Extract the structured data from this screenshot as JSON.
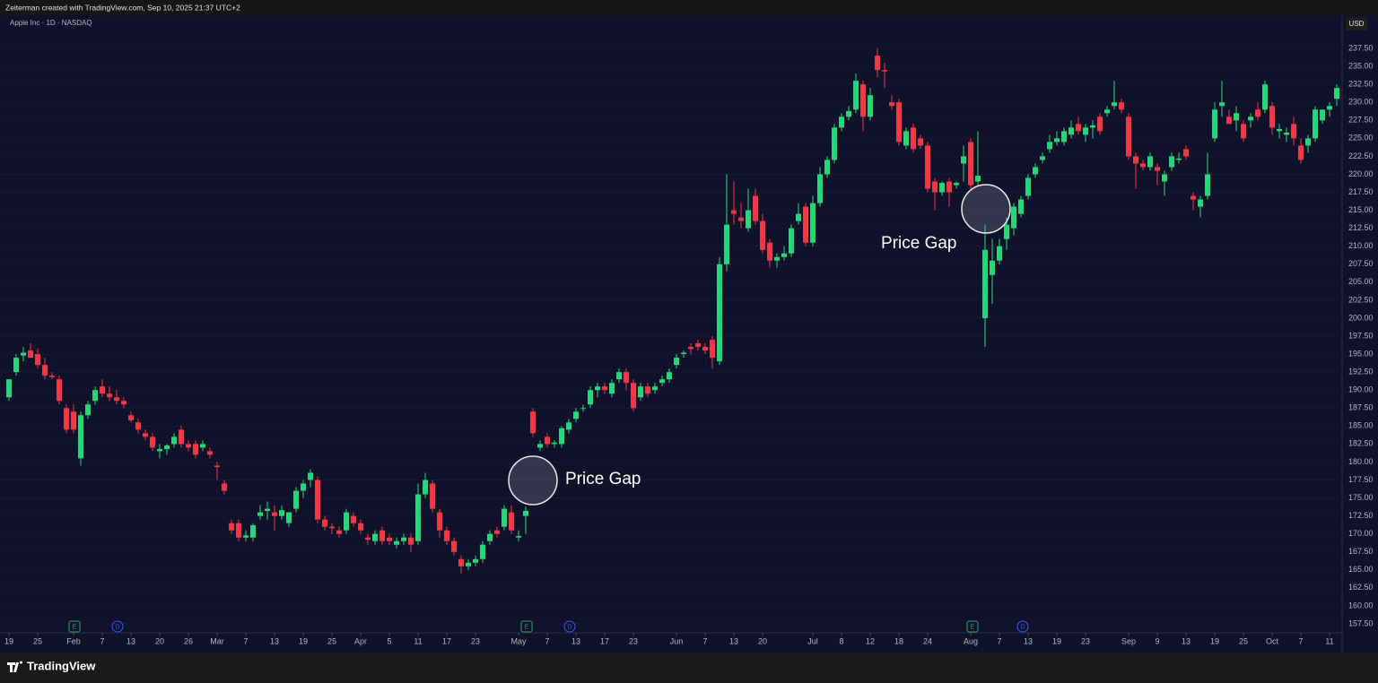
{
  "header": {
    "credit": "Zeiterman created with TradingView.com, Sep 10, 2025 21:37 UTC+2",
    "symbol": "Apple Inc · 1D · NASDAQ",
    "currency": "USD"
  },
  "footer": {
    "brand": "TradingView"
  },
  "chart_data": {
    "type": "candlestick",
    "up_color": "#22d97a",
    "down_color": "#f23645",
    "background": "#10112b",
    "ylim": [
      156.25,
      239.5
    ],
    "yticks": [
      {
        "value": 157.5,
        "label": "157.50"
      },
      {
        "value": 160,
        "label": "160.00"
      },
      {
        "value": 162.5,
        "label": "162.50"
      },
      {
        "value": 165,
        "label": "165.00"
      },
      {
        "value": 167.5,
        "label": "167.50"
      },
      {
        "value": 170,
        "label": "170.00"
      },
      {
        "value": 172.5,
        "label": "172.50"
      },
      {
        "value": 175,
        "label": "175.00"
      },
      {
        "value": 177.5,
        "label": "177.50"
      },
      {
        "value": 180,
        "label": "180.00"
      },
      {
        "value": 182.5,
        "label": "182.50"
      },
      {
        "value": 185,
        "label": "185.00"
      },
      {
        "value": 187.5,
        "label": "187.50"
      },
      {
        "value": 190,
        "label": "190.00"
      },
      {
        "value": 192.5,
        "label": "192.50"
      },
      {
        "value": 195,
        "label": "195.00"
      },
      {
        "value": 197.5,
        "label": "197.50"
      },
      {
        "value": 200,
        "label": "200.00"
      },
      {
        "value": 202.5,
        "label": "202.50"
      },
      {
        "value": 205,
        "label": "205.00"
      },
      {
        "value": 207.5,
        "label": "207.50"
      },
      {
        "value": 210,
        "label": "210.00"
      },
      {
        "value": 212.5,
        "label": "212.50"
      },
      {
        "value": 215,
        "label": "215.00"
      },
      {
        "value": 217.5,
        "label": "217.50"
      },
      {
        "value": 220,
        "label": "220.00"
      },
      {
        "value": 222.5,
        "label": "222.50"
      },
      {
        "value": 225,
        "label": "225.00"
      },
      {
        "value": 227.5,
        "label": "227.50"
      },
      {
        "value": 230,
        "label": "230.00"
      },
      {
        "value": 232.5,
        "label": "232.50"
      },
      {
        "value": 235,
        "label": "235.00"
      },
      {
        "value": 237.5,
        "label": "237.50"
      }
    ],
    "xticks": [
      {
        "value": 0,
        "label": "19"
      },
      {
        "value": 4,
        "label": "25"
      },
      {
        "value": 9,
        "label": "Feb"
      },
      {
        "value": 13,
        "label": "7"
      },
      {
        "value": 17,
        "label": "13"
      },
      {
        "value": 21,
        "label": "20"
      },
      {
        "value": 25,
        "label": "26"
      },
      {
        "value": 29,
        "label": "Mar"
      },
      {
        "value": 33,
        "label": "7"
      },
      {
        "value": 37,
        "label": "13"
      },
      {
        "value": 41,
        "label": "19"
      },
      {
        "value": 45,
        "label": "25"
      },
      {
        "value": 49,
        "label": "Apr"
      },
      {
        "value": 53,
        "label": "5"
      },
      {
        "value": 57,
        "label": "11"
      },
      {
        "value": 61,
        "label": "17"
      },
      {
        "value": 65,
        "label": "23"
      },
      {
        "value": 71,
        "label": "May"
      },
      {
        "value": 75,
        "label": "7"
      },
      {
        "value": 79,
        "label": "13"
      },
      {
        "value": 83,
        "label": "17"
      },
      {
        "value": 87,
        "label": "23"
      },
      {
        "value": 93,
        "label": "Jun"
      },
      {
        "value": 97,
        "label": "7"
      },
      {
        "value": 101,
        "label": "13"
      },
      {
        "value": 105,
        "label": "20"
      },
      {
        "value": 112,
        "label": "Jul"
      },
      {
        "value": 116,
        "label": "8"
      },
      {
        "value": 120,
        "label": "12"
      },
      {
        "value": 124,
        "label": "18"
      },
      {
        "value": 128,
        "label": "24"
      },
      {
        "value": 134,
        "label": "Aug"
      },
      {
        "value": 138,
        "label": "7"
      },
      {
        "value": 142,
        "label": "13"
      },
      {
        "value": 146,
        "label": "19"
      },
      {
        "value": 150,
        "label": "23"
      },
      {
        "value": 156,
        "label": "Sep"
      },
      {
        "value": 160,
        "label": "9"
      },
      {
        "value": 164,
        "label": "13"
      },
      {
        "value": 168,
        "label": "19"
      },
      {
        "value": 172,
        "label": "25"
      },
      {
        "value": 176,
        "label": "Oct"
      },
      {
        "value": 180,
        "label": "7"
      },
      {
        "value": 184,
        "label": "11"
      }
    ],
    "xlim": [
      -0.5,
      185.75
    ],
    "event_markers": [
      "E",
      "D",
      "E",
      "D",
      "E",
      "D"
    ],
    "annotations": [
      {
        "label": "Price Gap"
      },
      {
        "label": "Price Gap"
      }
    ],
    "candles": [
      [
        189,
        191.5,
        188.5,
        191.5
      ],
      [
        192.5,
        195,
        192,
        194.5
      ],
      [
        194.8,
        196,
        194,
        195.2
      ],
      [
        195.5,
        196.5,
        194.5,
        194.5
      ],
      [
        195,
        195.8,
        193,
        193.5
      ],
      [
        193.5,
        194.5,
        191.5,
        192
      ],
      [
        192,
        192.5,
        191.5,
        191.8
      ],
      [
        191.5,
        192,
        188,
        188.5
      ],
      [
        187.5,
        188,
        184,
        184.5
      ],
      [
        187,
        188,
        184,
        184.5
      ],
      [
        180.5,
        187,
        179.5,
        186.5
      ],
      [
        186.5,
        188.5,
        186,
        188
      ],
      [
        188.5,
        190.5,
        188,
        190
      ],
      [
        190.5,
        191.5,
        189,
        189.5
      ],
      [
        189.5,
        190.5,
        188.5,
        189
      ],
      [
        189,
        190,
        188,
        188.5
      ],
      [
        188.5,
        189,
        187.5,
        188
      ],
      [
        186.5,
        187,
        185.5,
        185.8
      ],
      [
        185.5,
        186,
        184,
        184.5
      ],
      [
        184,
        184.5,
        183,
        183.5
      ],
      [
        183.5,
        184,
        181.5,
        182
      ],
      [
        181.5,
        182.5,
        180.5,
        181.8
      ],
      [
        181.8,
        182.5,
        181,
        182.3
      ],
      [
        182.5,
        184,
        182,
        183.5
      ],
      [
        184.5,
        185,
        182,
        182.5
      ],
      [
        182.5,
        183,
        181.5,
        182
      ],
      [
        182.5,
        183,
        180.5,
        181
      ],
      [
        182,
        183,
        181.5,
        182.5
      ],
      [
        181.5,
        182,
        180.5,
        181
      ],
      [
        179.5,
        180,
        177.5,
        179.3
      ],
      [
        177,
        177.5,
        175.5,
        176
      ],
      [
        171.5,
        172,
        170,
        170.5
      ],
      [
        171.5,
        172,
        169,
        169.5
      ],
      [
        169.5,
        170.5,
        169,
        169.8
      ],
      [
        169.5,
        171.5,
        169,
        171.2
      ],
      [
        172.5,
        174,
        172,
        173
      ],
      [
        173.2,
        174.5,
        172,
        173.5
      ],
      [
        173,
        174,
        170.5,
        172.5
      ],
      [
        172.5,
        174,
        172,
        173.3
      ],
      [
        171.5,
        173,
        171,
        173
      ],
      [
        173.5,
        176.5,
        173,
        176
      ],
      [
        176,
        177.5,
        175,
        177
      ],
      [
        177.5,
        179,
        176.5,
        178.5
      ],
      [
        177.5,
        178,
        171.5,
        172
      ],
      [
        172,
        172.5,
        170.5,
        171
      ],
      [
        171,
        171.5,
        170,
        170.8
      ],
      [
        170.5,
        171,
        169.5,
        170
      ],
      [
        170.5,
        173.5,
        170,
        173
      ],
      [
        172.5,
        173,
        171,
        171.5
      ],
      [
        171.5,
        172,
        170,
        170.5
      ],
      [
        169.5,
        170,
        168.5,
        169.2
      ],
      [
        169,
        170.5,
        168.5,
        170
      ],
      [
        170.5,
        171,
        168.5,
        169
      ],
      [
        169.5,
        170,
        168.5,
        169
      ],
      [
        168.5,
        169.5,
        168,
        169
      ],
      [
        169,
        170,
        168.5,
        169.5
      ],
      [
        169.5,
        170,
        167.5,
        168.5
      ],
      [
        169,
        177,
        168.5,
        175.5
      ],
      [
        175.5,
        178.5,
        175,
        177.5
      ],
      [
        177,
        177.5,
        173,
        173.5
      ],
      [
        173,
        173.5,
        169.5,
        170.5
      ],
      [
        170.5,
        171,
        168.5,
        169
      ],
      [
        169,
        169.5,
        167,
        167.5
      ],
      [
        166.5,
        167,
        164.5,
        165.5
      ],
      [
        165.5,
        166.5,
        165,
        166
      ],
      [
        166,
        167,
        165.5,
        166.5
      ],
      [
        166.5,
        169,
        166,
        168.5
      ],
      [
        169,
        170.5,
        168.5,
        170
      ],
      [
        170.5,
        171,
        169.5,
        170
      ],
      [
        171,
        174,
        170.5,
        173.5
      ],
      [
        173,
        174,
        170,
        170.5
      ],
      [
        169.5,
        170.5,
        169,
        169.7
      ],
      [
        172.5,
        173.8,
        170,
        173.2
      ],
      [
        187,
        187.5,
        183.5,
        184
      ],
      [
        182,
        183,
        181.5,
        182.5
      ],
      [
        183.5,
        184,
        182,
        182.5
      ],
      [
        182.5,
        183,
        182,
        182.7
      ],
      [
        182.5,
        185,
        182,
        184.7
      ],
      [
        184.5,
        186,
        184,
        185.5
      ],
      [
        186,
        187.5,
        185.5,
        187
      ],
      [
        187.5,
        188,
        187,
        187.5
      ],
      [
        188,
        190.5,
        187.5,
        190
      ],
      [
        190,
        191,
        189,
        190.5
      ],
      [
        190.5,
        191,
        189.5,
        190
      ],
      [
        189.5,
        191.5,
        189,
        191
      ],
      [
        191.5,
        193,
        191,
        192.5
      ],
      [
        192.5,
        193,
        190,
        191
      ],
      [
        191,
        191.5,
        187,
        187.5
      ],
      [
        189,
        191,
        188.5,
        190.5
      ],
      [
        190.5,
        191,
        189,
        189.5
      ],
      [
        190,
        191,
        189.5,
        190.5
      ],
      [
        191,
        192,
        190.5,
        191.5
      ],
      [
        191.5,
        193,
        191,
        192.5
      ],
      [
        193.5,
        195,
        193,
        194.5
      ],
      [
        195,
        195.5,
        194.5,
        195.2
      ],
      [
        196,
        196.5,
        195,
        195.7
      ],
      [
        196.5,
        197,
        195.5,
        196
      ],
      [
        196,
        196.5,
        195,
        195.5
      ],
      [
        197,
        197.5,
        193,
        194.5
      ],
      [
        194,
        208.5,
        193.5,
        207.5
      ],
      [
        207.5,
        220,
        206.5,
        213
      ],
      [
        215,
        219,
        213,
        214.5
      ],
      [
        214,
        216,
        212.5,
        213.5
      ],
      [
        212.5,
        218,
        212,
        215
      ],
      [
        217,
        218,
        213,
        213.5
      ],
      [
        213.5,
        214.5,
        209,
        209.5
      ],
      [
        210.5,
        211,
        207,
        208
      ],
      [
        208,
        209,
        207,
        208.5
      ],
      [
        208.5,
        210,
        208,
        209
      ],
      [
        209,
        213,
        208.5,
        212.5
      ],
      [
        213.5,
        216,
        213,
        214.5
      ],
      [
        215.5,
        216,
        210,
        210.5
      ],
      [
        210.5,
        217,
        210,
        216
      ],
      [
        216,
        221,
        215.5,
        220
      ],
      [
        220,
        222.5,
        219.5,
        222
      ],
      [
        222,
        227,
        221.5,
        226.5
      ],
      [
        226.5,
        228.5,
        226,
        228
      ],
      [
        228,
        229.5,
        227.5,
        228.8
      ],
      [
        229,
        234,
        228.5,
        233
      ],
      [
        232.5,
        233,
        226,
        228
      ],
      [
        228,
        232,
        227.5,
        231
      ],
      [
        236.5,
        237.5,
        233.5,
        234.5
      ],
      [
        234.5,
        235.5,
        232,
        234.3
      ],
      [
        230,
        231,
        229,
        229.5
      ],
      [
        230,
        230.5,
        224,
        224.5
      ],
      [
        224,
        226.5,
        223.5,
        226
      ],
      [
        226.5,
        227,
        223,
        223.5
      ],
      [
        225,
        225.5,
        223.5,
        224
      ],
      [
        224,
        224.5,
        217.5,
        218
      ],
      [
        219,
        219.5,
        215,
        217.5
      ],
      [
        217.5,
        219,
        217,
        218.8
      ],
      [
        219,
        219.5,
        215.5,
        217.5
      ],
      [
        218.5,
        219,
        218,
        218.8
      ],
      [
        221.5,
        224,
        219,
        222.5
      ],
      [
        224.5,
        225,
        218,
        218.5
      ],
      [
        219,
        226,
        218.5,
        219.8
      ],
      [
        200,
        213,
        196,
        209.5
      ],
      [
        206,
        211,
        202,
        208
      ],
      [
        208,
        211,
        207.5,
        210
      ],
      [
        211,
        214,
        209.5,
        213
      ],
      [
        212.5,
        216,
        211.5,
        215.5
      ],
      [
        214.5,
        217,
        214,
        216.5
      ],
      [
        217,
        220,
        216.5,
        219.5
      ],
      [
        220,
        221.5,
        219.5,
        221
      ],
      [
        222,
        223,
        221.5,
        222.5
      ],
      [
        223.5,
        225.5,
        223,
        224.5
      ],
      [
        224.5,
        226,
        224,
        225
      ],
      [
        224.5,
        226.5,
        224,
        226
      ],
      [
        225.5,
        227.5,
        225,
        226.5
      ],
      [
        227,
        228,
        225.5,
        226
      ],
      [
        225.5,
        227,
        224.5,
        226.5
      ],
      [
        226.5,
        227.5,
        225,
        226.8
      ],
      [
        228,
        228.5,
        225.5,
        226
      ],
      [
        228.5,
        229.5,
        228,
        229
      ],
      [
        229.5,
        233,
        229,
        230
      ],
      [
        230,
        230.5,
        228.5,
        229
      ],
      [
        228,
        228.5,
        222,
        222.5
      ],
      [
        222.5,
        223,
        218,
        221.5
      ],
      [
        221.5,
        222,
        220.5,
        221
      ],
      [
        221,
        223,
        220.5,
        222.5
      ],
      [
        221,
        221.5,
        218.5,
        220.5
      ],
      [
        219,
        220.5,
        217,
        220
      ],
      [
        221,
        223,
        220.5,
        222.5
      ],
      [
        222,
        223,
        221.5,
        222.2
      ],
      [
        223.5,
        224,
        222,
        222.5
      ],
      [
        217,
        217.5,
        215,
        216.5
      ],
      [
        215.5,
        217,
        214,
        216.5
      ],
      [
        217,
        223,
        216.5,
        220
      ],
      [
        225,
        230,
        224.5,
        229
      ],
      [
        229.5,
        233,
        228,
        230
      ],
      [
        228,
        229,
        227,
        227
      ],
      [
        227.5,
        229.5,
        226,
        228.5
      ],
      [
        227,
        227.5,
        224.5,
        225
      ],
      [
        227.5,
        228.5,
        226.5,
        228
      ],
      [
        229,
        230,
        227.5,
        228
      ],
      [
        229,
        233,
        228.5,
        232.5
      ],
      [
        229.5,
        230,
        225.5,
        226.5
      ],
      [
        226,
        227,
        225,
        226.3
      ],
      [
        225.5,
        226.5,
        224.5,
        225.8
      ],
      [
        227,
        228,
        224,
        225
      ],
      [
        224,
        225,
        221.5,
        222
      ],
      [
        224,
        225.5,
        223,
        225
      ],
      [
        225,
        229.5,
        224.5,
        229
      ],
      [
        227.5,
        229,
        227,
        229
      ],
      [
        229,
        230,
        228,
        229.5
      ],
      [
        230.5,
        232.5,
        229.5,
        232
      ]
    ]
  }
}
